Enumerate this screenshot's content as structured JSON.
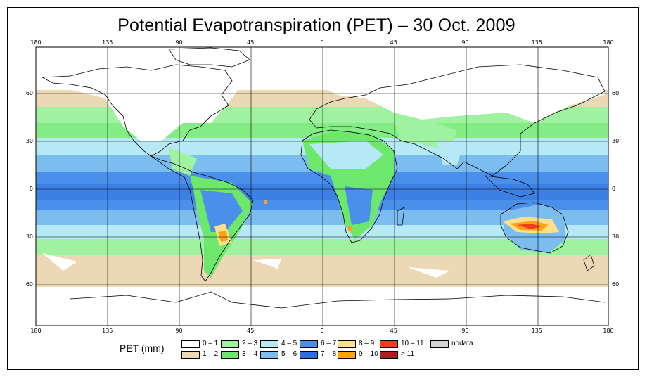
{
  "title": "Potential Evapotranspiration (PET) – 30 Oct. 2009",
  "axes": {
    "lon_labels": [
      "180",
      "135",
      "90",
      "45",
      "0",
      "45",
      "90",
      "135",
      "180"
    ],
    "lon_values": [
      -180,
      -135,
      -90,
      -45,
      0,
      45,
      90,
      135,
      180
    ],
    "lat_labels": [
      "60",
      "30",
      "0",
      "30",
      "60"
    ],
    "lat_values": [
      60,
      30,
      0,
      -30,
      -60
    ]
  },
  "legend": {
    "title": "PET (mm)",
    "classes": [
      {
        "label": "0 – 1",
        "color": "#ffffff"
      },
      {
        "label": "1 – 2",
        "color": "#ecd8b4"
      },
      {
        "label": "2 – 3",
        "color": "#9ff29f"
      },
      {
        "label": "3 – 4",
        "color": "#6de86d"
      },
      {
        "label": "4 – 5",
        "color": "#b4e9f5"
      },
      {
        "label": "5 – 6",
        "color": "#7cbdf0"
      },
      {
        "label": "6 – 7",
        "color": "#4a8fea"
      },
      {
        "label": "7 – 8",
        "color": "#2d6ee0"
      },
      {
        "label": "8 – 9",
        "color": "#ffe08a"
      },
      {
        "label": "9 – 10",
        "color": "#ffa21a"
      },
      {
        "label": "10 – 11",
        "color": "#f23d1a"
      },
      {
        "label": "> 11",
        "color": "#a82020"
      },
      {
        "label": "nodata",
        "color": "#d3d3d3"
      }
    ]
  }
}
